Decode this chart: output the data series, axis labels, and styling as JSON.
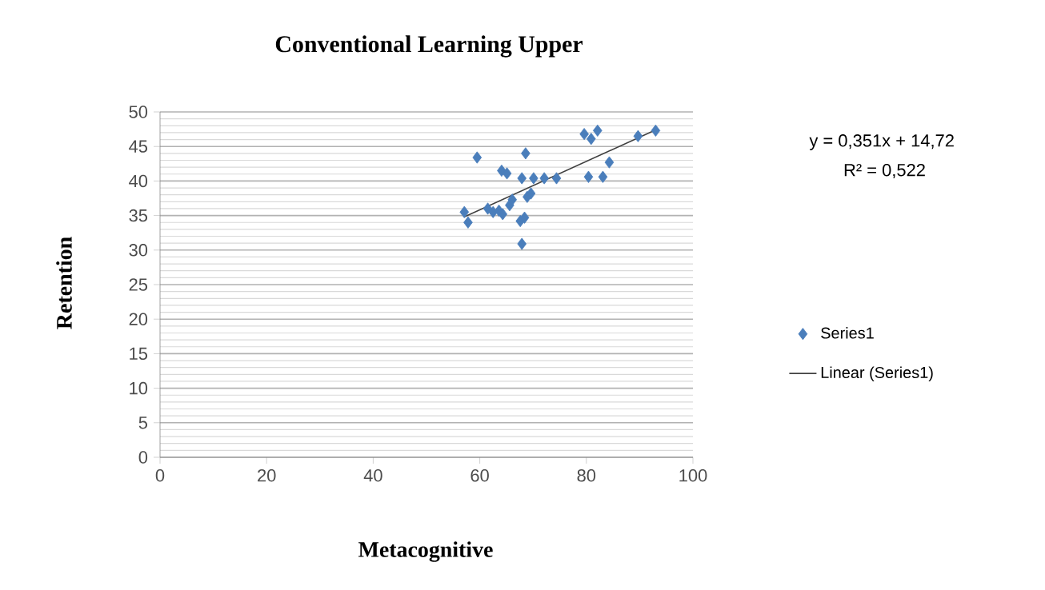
{
  "chart_data": {
    "type": "scatter",
    "title": "Conventional Learning Upper",
    "xlabel": "Metacognitive",
    "ylabel": "Retention",
    "xlim": [
      0,
      100
    ],
    "xticks": [
      0,
      20,
      40,
      60,
      80,
      100
    ],
    "ylim": [
      0,
      50
    ],
    "yticks": [
      0,
      5,
      10,
      15,
      20,
      25,
      30,
      35,
      40,
      45,
      50
    ],
    "grid": "y",
    "legend": "right",
    "annotations": [
      "y = 0,351x + 14,72",
      "R² = 0,522"
    ],
    "series": [
      {
        "name": "Series1",
        "marker": "diamond",
        "color": "#4a7ebb",
        "x": [
          57.1,
          57.8,
          59.5,
          61.5,
          62.5,
          64.1,
          65.1,
          64.3,
          65.6,
          66.1,
          63.6,
          67.6,
          68.4,
          67.9,
          67.9,
          68.6,
          68.9,
          69.6,
          70.1,
          72.1,
          74.4,
          79.6,
          80.9,
          82.1,
          80.4,
          83.1,
          84.3,
          89.7,
          93.0
        ],
        "values": [
          35.5,
          34.0,
          43.4,
          36.0,
          35.5,
          41.5,
          41.1,
          35.2,
          36.5,
          37.3,
          35.7,
          34.2,
          34.7,
          30.9,
          40.4,
          44.0,
          37.7,
          38.2,
          40.4,
          40.4,
          40.4,
          46.8,
          46.1,
          47.3,
          40.6,
          40.6,
          42.7,
          46.5,
          47.3
        ]
      },
      {
        "name": "Linear (Series1)",
        "type": "line",
        "marker": "none",
        "color": "#404040",
        "x": [
          57.1,
          93.0
        ],
        "values": [
          34.8,
          47.4
        ]
      }
    ]
  }
}
